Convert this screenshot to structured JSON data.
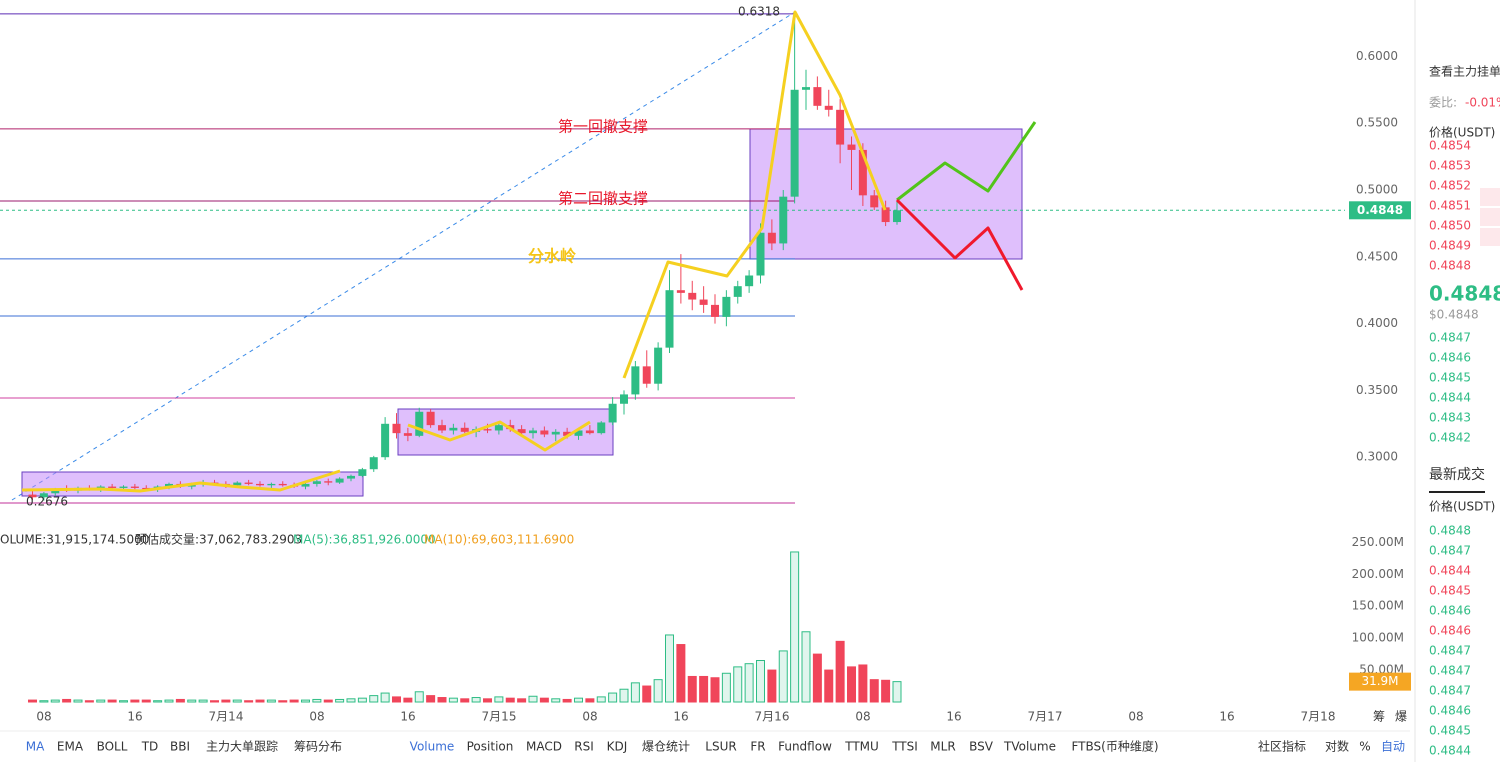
{
  "price_chart": {
    "ylim": [
      0.253,
      0.6422
    ],
    "yticks": [
      {
        "value": 0.3,
        "label": "0.3000"
      },
      {
        "value": 0.35,
        "label": "0.3500"
      },
      {
        "value": 0.4,
        "label": "0.4000"
      },
      {
        "value": 0.45,
        "label": "0.4500"
      },
      {
        "value": 0.5,
        "label": "0.5000"
      },
      {
        "value": 0.55,
        "label": "0.5500"
      },
      {
        "value": 0.6,
        "label": "0.6000"
      }
    ],
    "high_label": "0.6318",
    "low_label": "0.2676",
    "current_price": {
      "value": 0.4848,
      "label": "0.4848"
    },
    "up_color": "#2ebd85",
    "down_color": "#f0455a",
    "levels": [
      {
        "value": 0.6318,
        "color": "#5b2bb5"
      },
      {
        "value": 0.5457,
        "color": "#b0206a"
      },
      {
        "value": 0.4918,
        "color": "#9b1a6e"
      },
      {
        "value": 0.4484,
        "color": "#3b6fd6"
      },
      {
        "value": 0.4057,
        "color": "#3b6fd6"
      },
      {
        "value": 0.3443,
        "color": "#d040a0"
      },
      {
        "value": 0.2657,
        "color": "#c0309a"
      }
    ],
    "annotations": [
      "第一回撤支撑",
      "第二回撤支撑",
      "分水岭"
    ],
    "candles": [
      [
        0.272,
        0.276,
        0.268,
        0.27
      ],
      [
        0.27,
        0.274,
        0.2676,
        0.273
      ],
      [
        0.273,
        0.277,
        0.271,
        0.276
      ],
      [
        0.276,
        0.279,
        0.274,
        0.275
      ],
      [
        0.275,
        0.278,
        0.273,
        0.277
      ],
      [
        0.277,
        0.279,
        0.275,
        0.276
      ],
      [
        0.276,
        0.279,
        0.274,
        0.278
      ],
      [
        0.278,
        0.28,
        0.276,
        0.277
      ],
      [
        0.277,
        0.279,
        0.275,
        0.278
      ],
      [
        0.278,
        0.28,
        0.276,
        0.277
      ],
      [
        0.277,
        0.279,
        0.275,
        0.276
      ],
      [
        0.276,
        0.279,
        0.274,
        0.278
      ],
      [
        0.278,
        0.281,
        0.276,
        0.28
      ],
      [
        0.28,
        0.282,
        0.277,
        0.278
      ],
      [
        0.278,
        0.281,
        0.276,
        0.28
      ],
      [
        0.28,
        0.283,
        0.278,
        0.281
      ],
      [
        0.281,
        0.283,
        0.279,
        0.28
      ],
      [
        0.28,
        0.282,
        0.277,
        0.279
      ],
      [
        0.279,
        0.282,
        0.277,
        0.281
      ],
      [
        0.281,
        0.283,
        0.279,
        0.28
      ],
      [
        0.28,
        0.282,
        0.278,
        0.279
      ],
      [
        0.279,
        0.281,
        0.277,
        0.28
      ],
      [
        0.28,
        0.282,
        0.278,
        0.279
      ],
      [
        0.279,
        0.281,
        0.277,
        0.278
      ],
      [
        0.278,
        0.281,
        0.276,
        0.28
      ],
      [
        0.28,
        0.283,
        0.278,
        0.282
      ],
      [
        0.282,
        0.284,
        0.279,
        0.281
      ],
      [
        0.281,
        0.285,
        0.28,
        0.284
      ],
      [
        0.284,
        0.287,
        0.282,
        0.286
      ],
      [
        0.286,
        0.292,
        0.285,
        0.291
      ],
      [
        0.291,
        0.301,
        0.289,
        0.3
      ],
      [
        0.3,
        0.33,
        0.298,
        0.325
      ],
      [
        0.325,
        0.333,
        0.314,
        0.318
      ],
      [
        0.318,
        0.322,
        0.312,
        0.316
      ],
      [
        0.316,
        0.337,
        0.315,
        0.334
      ],
      [
        0.334,
        0.336,
        0.322,
        0.324
      ],
      [
        0.324,
        0.328,
        0.318,
        0.32
      ],
      [
        0.32,
        0.325,
        0.317,
        0.322
      ],
      [
        0.322,
        0.326,
        0.318,
        0.319
      ],
      [
        0.319,
        0.323,
        0.315,
        0.321
      ],
      [
        0.321,
        0.325,
        0.318,
        0.32
      ],
      [
        0.32,
        0.326,
        0.317,
        0.324
      ],
      [
        0.324,
        0.328,
        0.319,
        0.321
      ],
      [
        0.321,
        0.324,
        0.316,
        0.318
      ],
      [
        0.318,
        0.322,
        0.314,
        0.32
      ],
      [
        0.32,
        0.323,
        0.315,
        0.317
      ],
      [
        0.317,
        0.321,
        0.312,
        0.319
      ],
      [
        0.319,
        0.322,
        0.314,
        0.316
      ],
      [
        0.316,
        0.321,
        0.313,
        0.32
      ],
      [
        0.32,
        0.324,
        0.317,
        0.318
      ],
      [
        0.318,
        0.327,
        0.317,
        0.326
      ],
      [
        0.326,
        0.345,
        0.324,
        0.34
      ],
      [
        0.34,
        0.35,
        0.332,
        0.347
      ],
      [
        0.347,
        0.372,
        0.343,
        0.368
      ],
      [
        0.368,
        0.38,
        0.352,
        0.355
      ],
      [
        0.355,
        0.386,
        0.35,
        0.382
      ],
      [
        0.382,
        0.44,
        0.378,
        0.425
      ],
      [
        0.425,
        0.452,
        0.415,
        0.423
      ],
      [
        0.423,
        0.432,
        0.41,
        0.418
      ],
      [
        0.418,
        0.428,
        0.408,
        0.414
      ],
      [
        0.414,
        0.422,
        0.4,
        0.405
      ],
      [
        0.405,
        0.425,
        0.398,
        0.42
      ],
      [
        0.42,
        0.432,
        0.415,
        0.428
      ],
      [
        0.428,
        0.44,
        0.423,
        0.436
      ],
      [
        0.436,
        0.475,
        0.43,
        0.468
      ],
      [
        0.468,
        0.478,
        0.455,
        0.46
      ],
      [
        0.46,
        0.5,
        0.455,
        0.495
      ],
      [
        0.495,
        0.6318,
        0.49,
        0.575
      ],
      [
        0.575,
        0.59,
        0.56,
        0.577
      ],
      [
        0.577,
        0.585,
        0.56,
        0.563
      ],
      [
        0.563,
        0.575,
        0.555,
        0.56
      ],
      [
        0.56,
        0.568,
        0.52,
        0.534
      ],
      [
        0.534,
        0.54,
        0.5,
        0.53
      ],
      [
        0.53,
        0.535,
        0.488,
        0.496
      ],
      [
        0.496,
        0.5,
        0.485,
        0.487
      ],
      [
        0.487,
        0.492,
        0.473,
        0.476
      ],
      [
        0.476,
        0.492,
        0.474,
        0.4848
      ]
    ]
  },
  "volume_chart": {
    "header": [
      "VOLUME:31,915,174.5000",
      "预估成交量:37,062,783.2903",
      "MA(5):36,851,926.0000",
      "MA(10):69,603,111.6900"
    ],
    "ylim": [
      0,
      260
    ],
    "yticks": [
      {
        "value": 50,
        "label": "50.00M"
      },
      {
        "value": 100,
        "label": "100.00M"
      },
      {
        "value": 150,
        "label": "150.00M"
      },
      {
        "value": 200,
        "label": "200.00M"
      },
      {
        "value": 250,
        "label": "250.00M"
      }
    ],
    "current": {
      "value": 31.9,
      "label": "31.9M"
    },
    "values": [
      3,
      2,
      3,
      4,
      3,
      2,
      3,
      3,
      2,
      3,
      3,
      2,
      3,
      4,
      3,
      3,
      2,
      3,
      3,
      2,
      3,
      3,
      2,
      3,
      3,
      4,
      3,
      4,
      5,
      6,
      10,
      14,
      8,
      6,
      16,
      10,
      7,
      6,
      5,
      7,
      5,
      8,
      6,
      5,
      9,
      6,
      5,
      4,
      6,
      5,
      8,
      14,
      20,
      30,
      25,
      35,
      105,
      90,
      40,
      40,
      38,
      45,
      55,
      60,
      65,
      50,
      80,
      235,
      110,
      75,
      50,
      95,
      55,
      58,
      35,
      34,
      31.9
    ]
  },
  "time_axis": {
    "labels": [
      "08",
      "16",
      "7月14",
      "08",
      "16",
      "7月15",
      "08",
      "16",
      "7月16",
      "08",
      "16",
      "7月17",
      "08",
      "16",
      "7月18"
    ],
    "extras": [
      "筹",
      "爆"
    ]
  },
  "toolbar": {
    "left": [
      "MA",
      "EMA",
      "BOLL",
      "TD",
      "BBI",
      "主力大单跟踪",
      "筹码分布"
    ],
    "right": [
      "Volume",
      "Position",
      "MACD",
      "RSI",
      "KDJ",
      "爆仓统计",
      "LSUR",
      "FR",
      "Fundflow",
      "TTMU",
      "TTSI",
      "MLR",
      "BSV",
      "TVolume",
      "FTBS(币种维度)"
    ],
    "extras": [
      "社区指标",
      "对数",
      "%",
      "自动"
    ]
  },
  "order_book": {
    "title": "查看主力挂单",
    "ratio_label": "委比:",
    "ratio": "-0.01%",
    "price_header": "价格(USDT)",
    "asks": [
      "0.4854",
      "0.4853",
      "0.4852",
      "0.4851",
      "0.4850",
      "0.4849",
      "0.4848"
    ],
    "last": "0.4848",
    "last_usd": "$0.4848",
    "bids": [
      "0.4847",
      "0.4846",
      "0.4845",
      "0.4844",
      "0.4843",
      "0.4842"
    ]
  },
  "trades": {
    "title": "最新成交",
    "price_header": "价格(USDT)",
    "rows": [
      {
        "price": "0.4848",
        "color": "#2ebd85"
      },
      {
        "price": "0.4847",
        "color": "#2ebd85"
      },
      {
        "price": "0.4844",
        "color": "#f0455a"
      },
      {
        "price": "0.4845",
        "color": "#f0455a"
      },
      {
        "price": "0.4846",
        "color": "#2ebd85"
      },
      {
        "price": "0.4846",
        "color": "#f0455a"
      },
      {
        "price": "0.4847",
        "color": "#2ebd85"
      },
      {
        "price": "0.4847",
        "color": "#2ebd85"
      },
      {
        "price": "0.4847",
        "color": "#2ebd85"
      },
      {
        "price": "0.4846",
        "color": "#2ebd85"
      },
      {
        "price": "0.4845",
        "color": "#2ebd85"
      },
      {
        "price": "0.4844",
        "color": "#2ebd85"
      }
    ]
  }
}
